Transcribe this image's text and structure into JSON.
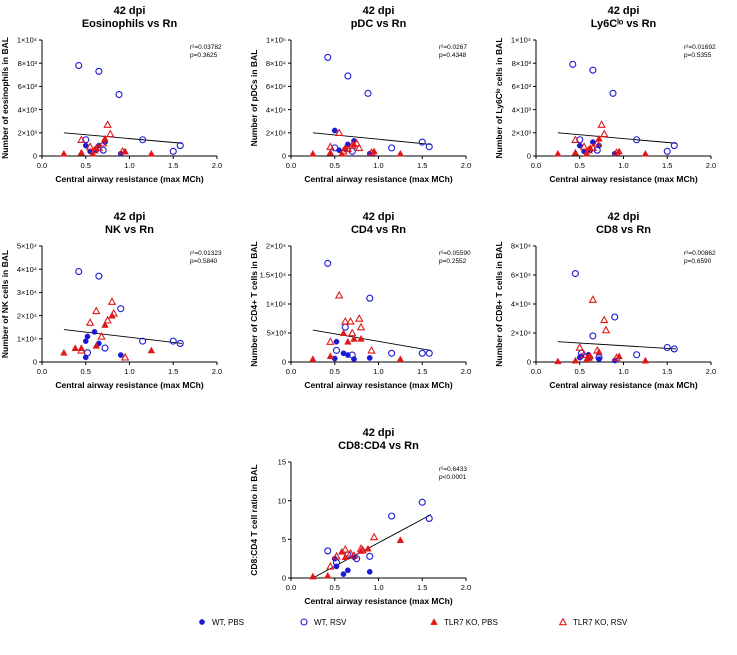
{
  "legend": {
    "items": [
      {
        "key": "wt_pbs",
        "label": "WT, PBS",
        "marker": "filled-circle",
        "color": "#1a1ad6"
      },
      {
        "key": "wt_rsv",
        "label": "WT, RSV",
        "marker": "open-circle",
        "color": "#1a1ad6"
      },
      {
        "key": "tlr7_pbs",
        "label": "TLR7 KO, PBS",
        "marker": "filled-triangle",
        "color": "#e01818"
      },
      {
        "key": "tlr7_rsv",
        "label": "TLR7 KO, RSV",
        "marker": "open-triangle",
        "color": "#e01818"
      }
    ]
  },
  "chart_data": [
    {
      "id": "eos",
      "type": "scatter",
      "title_line1": "42 dpi",
      "title_line2": "Eosinophils vs Rn",
      "ylabel": "Number of eosinophils in BAL",
      "xlabel": "Central airway resistance (max MCh)",
      "xlim": [
        0,
        2.0
      ],
      "xticks": [
        "0.0",
        "0.5",
        "1.0",
        "1.5",
        "2.0"
      ],
      "ylim": [
        0,
        10000
      ],
      "yticks": [
        "0",
        "2×10³",
        "4×10³",
        "6×10³",
        "8×10³",
        "1×10⁴"
      ],
      "stats": {
        "r2": "r²=0.03782",
        "p": "p=0.3625"
      },
      "fit": {
        "x": [
          0.25,
          1.6
        ],
        "y": [
          2000,
          1100
        ]
      },
      "series": [
        {
          "group": "wt_pbs",
          "x": [
            0.5,
            0.55,
            0.62,
            0.65,
            0.72,
            0.9
          ],
          "y": [
            900,
            400,
            500,
            900,
            1200,
            200
          ]
        },
        {
          "group": "wt_rsv",
          "x": [
            0.42,
            0.5,
            0.65,
            0.7,
            0.88,
            1.15,
            1.5,
            1.58
          ],
          "y": [
            7800,
            1400,
            7300,
            500,
            5300,
            1400,
            400,
            900
          ]
        },
        {
          "group": "tlr7_pbs",
          "x": [
            0.25,
            0.45,
            0.58,
            0.62,
            0.72,
            0.95,
            1.25
          ],
          "y": [
            200,
            300,
            200,
            700,
            1500,
            400,
            200
          ]
        },
        {
          "group": "tlr7_rsv",
          "x": [
            0.45,
            0.55,
            0.6,
            0.65,
            0.7,
            0.75,
            0.78,
            0.92
          ],
          "y": [
            1400,
            800,
            500,
            700,
            1100,
            2700,
            1900,
            400
          ]
        }
      ]
    },
    {
      "id": "pdc",
      "type": "scatter",
      "title_line1": "42 dpi",
      "title_line2": "pDC vs Rn",
      "ylabel": "Number of pDCs in BAL",
      "xlabel": "Central airway resistance (max MCh)",
      "xlim": [
        0,
        2.0
      ],
      "xticks": [
        "0.0",
        "0.5",
        "1.0",
        "1.5",
        "2.0"
      ],
      "ylim": [
        0,
        100000
      ],
      "yticks": [
        "0",
        "2×10⁴",
        "4×10⁴",
        "6×10⁴",
        "8×10⁴",
        "1×10⁵"
      ],
      "stats": {
        "r2": "r²=0.0267",
        "p": "p=0.4348"
      },
      "fit": {
        "x": [
          0.25,
          1.6
        ],
        "y": [
          20000,
          10000
        ]
      },
      "series": [
        {
          "group": "wt_pbs",
          "x": [
            0.5,
            0.55,
            0.62,
            0.65,
            0.72,
            0.9
          ],
          "y": [
            22000,
            5000,
            6000,
            10000,
            13000,
            2000
          ]
        },
        {
          "group": "wt_rsv",
          "x": [
            0.42,
            0.5,
            0.65,
            0.7,
            0.88,
            1.15,
            1.5,
            1.58
          ],
          "y": [
            85000,
            7000,
            69000,
            4000,
            54000,
            7000,
            12000,
            8000
          ]
        },
        {
          "group": "tlr7_pbs",
          "x": [
            0.25,
            0.45,
            0.58,
            0.62,
            0.72,
            0.95,
            1.25
          ],
          "y": [
            2000,
            3000,
            2000,
            7000,
            10000,
            4000,
            2000
          ]
        },
        {
          "group": "tlr7_rsv",
          "x": [
            0.45,
            0.55,
            0.6,
            0.65,
            0.7,
            0.75,
            0.78,
            0.92
          ],
          "y": [
            8000,
            20000,
            4000,
            6000,
            9000,
            11000,
            7000,
            3000
          ]
        }
      ]
    },
    {
      "id": "ly6c",
      "type": "scatter",
      "title_line1": "42 dpi",
      "title_line2": "Ly6Cˡᵒ vs Rn",
      "ylabel": "Number of Ly6Cˡᵒ cells in BAL",
      "xlabel": "Central airway resistance (max MCh)",
      "xlim": [
        0,
        2.0
      ],
      "xticks": [
        "0.0",
        "0.5",
        "1.0",
        "1.5",
        "2.0"
      ],
      "ylim": [
        0,
        10000
      ],
      "yticks": [
        "0",
        "2×10³",
        "4×10³",
        "6×10³",
        "8×10³",
        "1×10⁴"
      ],
      "stats": {
        "r2": "r²=0.01692",
        "p": "p=0.5355"
      },
      "fit": {
        "x": [
          0.25,
          1.6
        ],
        "y": [
          2000,
          1100
        ]
      },
      "series": [
        {
          "group": "wt_pbs",
          "x": [
            0.5,
            0.55,
            0.62,
            0.65,
            0.72,
            0.9
          ],
          "y": [
            900,
            400,
            500,
            1200,
            900,
            200
          ]
        },
        {
          "group": "wt_rsv",
          "x": [
            0.42,
            0.5,
            0.65,
            0.7,
            0.88,
            1.15,
            1.5,
            1.58
          ],
          "y": [
            7900,
            1400,
            7400,
            500,
            5400,
            1400,
            400,
            900
          ]
        },
        {
          "group": "tlr7_pbs",
          "x": [
            0.25,
            0.45,
            0.58,
            0.62,
            0.72,
            0.95,
            1.25
          ],
          "y": [
            200,
            300,
            200,
            700,
            1500,
            400,
            200
          ]
        },
        {
          "group": "tlr7_rsv",
          "x": [
            0.45,
            0.55,
            0.6,
            0.65,
            0.7,
            0.75,
            0.78,
            0.92
          ],
          "y": [
            1400,
            800,
            500,
            700,
            1100,
            2700,
            1900,
            300
          ]
        }
      ]
    },
    {
      "id": "nk",
      "type": "scatter",
      "title_line1": "42 dpi",
      "title_line2": "NK vs Rn",
      "ylabel": "Number of NK cells in BAL",
      "xlabel": "Central airway resistance (max MCh)",
      "xlim": [
        0,
        2.0
      ],
      "xticks": [
        "0.0",
        "0.5",
        "1.0",
        "1.5",
        "2.0"
      ],
      "ylim": [
        0,
        50000
      ],
      "yticks": [
        "0",
        "1×10⁴",
        "2×10⁴",
        "3×10⁴",
        "4×10⁴",
        "5×10⁴"
      ],
      "stats": {
        "r2": "r²=0.01323",
        "p": "p=0.5840"
      },
      "fit": {
        "x": [
          0.25,
          1.6
        ],
        "y": [
          14000,
          8000
        ]
      },
      "series": [
        {
          "group": "wt_pbs",
          "x": [
            0.5,
            0.5,
            0.52,
            0.6,
            0.65,
            0.9
          ],
          "y": [
            2000,
            9000,
            11000,
            13000,
            8000,
            3000
          ]
        },
        {
          "group": "wt_rsv",
          "x": [
            0.42,
            0.52,
            0.65,
            0.72,
            0.9,
            1.15,
            1.5,
            1.58
          ],
          "y": [
            39000,
            4000,
            37000,
            6000,
            23000,
            9000,
            9000,
            8000
          ]
        },
        {
          "group": "tlr7_pbs",
          "x": [
            0.25,
            0.38,
            0.45,
            0.62,
            0.72,
            0.8,
            1.25
          ],
          "y": [
            4000,
            6000,
            6000,
            7000,
            16000,
            20000,
            5000
          ]
        },
        {
          "group": "tlr7_rsv",
          "x": [
            0.45,
            0.55,
            0.62,
            0.68,
            0.75,
            0.8,
            0.82,
            0.95
          ],
          "y": [
            5000,
            17000,
            22000,
            11000,
            18000,
            26000,
            21000,
            2000
          ]
        }
      ]
    },
    {
      "id": "cd4",
      "type": "scatter",
      "title_line1": "42 dpi",
      "title_line2": "CD4 vs Rn",
      "ylabel": "Number of CD4+ T cells in BAL",
      "xlabel": "Central airway resistance (max MCh)",
      "xlim": [
        0,
        2.0
      ],
      "xticks": [
        "0.0",
        "0.5",
        "1.0",
        "1.5",
        "2.0"
      ],
      "ylim": [
        0,
        20000
      ],
      "yticks": [
        "0",
        "5×10³",
        "1×10⁴",
        "1.5×10⁴",
        "2×10⁴"
      ],
      "stats": {
        "r2": "r²=0.05590",
        "p": "p=0.2552"
      },
      "fit": {
        "x": [
          0.25,
          1.6
        ],
        "y": [
          5500,
          2000
        ]
      },
      "series": [
        {
          "group": "wt_pbs",
          "x": [
            0.5,
            0.52,
            0.6,
            0.65,
            0.72,
            0.9
          ],
          "y": [
            600,
            3500,
            1500,
            1200,
            500,
            700
          ]
        },
        {
          "group": "wt_rsv",
          "x": [
            0.42,
            0.52,
            0.62,
            0.7,
            0.9,
            1.15,
            1.5,
            1.58
          ],
          "y": [
            17000,
            2000,
            6000,
            1200,
            11000,
            1500,
            1500,
            1500
          ]
        },
        {
          "group": "tlr7_pbs",
          "x": [
            0.25,
            0.45,
            0.6,
            0.65,
            0.72,
            0.8,
            1.25
          ],
          "y": [
            500,
            1000,
            5000,
            3500,
            4000,
            4000,
            500
          ]
        },
        {
          "group": "tlr7_rsv",
          "x": [
            0.45,
            0.55,
            0.62,
            0.68,
            0.7,
            0.78,
            0.8,
            0.92
          ],
          "y": [
            3500,
            11500,
            7000,
            7000,
            5000,
            7500,
            6000,
            2000
          ]
        }
      ]
    },
    {
      "id": "cd8",
      "type": "scatter",
      "title_line1": "42 dpi",
      "title_line2": "CD8 vs Rn",
      "ylabel": "Number of CD8+ T cells in BAL",
      "xlabel": "Central airway resistance (max MCh)",
      "xlim": [
        0,
        2.0
      ],
      "xticks": [
        "0.0",
        "0.5",
        "1.0",
        "1.5",
        "2.0"
      ],
      "ylim": [
        0,
        80000
      ],
      "yticks": [
        "0",
        "2×10⁴",
        "4×10⁴",
        "6×10⁴",
        "8×10⁴"
      ],
      "stats": {
        "r2": "r²=0.00862",
        "p": "p=0.6590"
      },
      "fit": {
        "x": [
          0.25,
          1.6
        ],
        "y": [
          14000,
          9000
        ]
      },
      "series": [
        {
          "group": "wt_pbs",
          "x": [
            0.5,
            0.52,
            0.6,
            0.62,
            0.72,
            0.9
          ],
          "y": [
            3000,
            4000,
            5000,
            3000,
            2000,
            1000
          ]
        },
        {
          "group": "wt_rsv",
          "x": [
            0.45,
            0.52,
            0.65,
            0.72,
            0.9,
            1.15,
            1.5,
            1.58
          ],
          "y": [
            61000,
            6000,
            18000,
            3000,
            31000,
            5000,
            10000,
            9000
          ]
        },
        {
          "group": "tlr7_pbs",
          "x": [
            0.25,
            0.45,
            0.58,
            0.62,
            0.72,
            0.95,
            1.25
          ],
          "y": [
            500,
            1000,
            2000,
            4000,
            7000,
            4000,
            1000
          ]
        },
        {
          "group": "tlr7_rsv",
          "x": [
            0.5,
            0.55,
            0.6,
            0.65,
            0.7,
            0.78,
            0.8,
            0.92
          ],
          "y": [
            10000,
            5000,
            3000,
            43000,
            8000,
            29000,
            22000,
            3000
          ]
        }
      ]
    },
    {
      "id": "ratio",
      "type": "scatter",
      "title_line1": "42 dpi",
      "title_line2": "CD8:CD4 vs Rn",
      "ylabel": "CD8:CD4 T cell ratio in BAL",
      "xlabel": "Central airway resistance (max MCh)",
      "xlim": [
        0,
        2.0
      ],
      "xticks": [
        "0.0",
        "0.5",
        "1.0",
        "1.5",
        "2.0"
      ],
      "ylim": [
        0,
        15
      ],
      "yticks": [
        "0",
        "5",
        "10",
        "15"
      ],
      "stats": {
        "r2": "r²=0.6433",
        "p": "p<0.0001"
      },
      "fit": {
        "x": [
          0.25,
          1.6
        ],
        "y": [
          0.0,
          8.2
        ]
      },
      "series": [
        {
          "group": "wt_pbs",
          "x": [
            0.5,
            0.52,
            0.6,
            0.65,
            0.72,
            0.9
          ],
          "y": [
            2.5,
            1.5,
            0.5,
            1.0,
            2.7,
            0.8
          ]
        },
        {
          "group": "wt_rsv",
          "x": [
            0.42,
            0.52,
            0.65,
            0.75,
            0.9,
            1.15,
            1.5,
            1.58
          ],
          "y": [
            3.5,
            2.0,
            3.0,
            2.5,
            2.8,
            8.0,
            9.8,
            7.7
          ]
        },
        {
          "group": "tlr7_pbs",
          "x": [
            0.25,
            0.42,
            0.58,
            0.62,
            0.8,
            0.88,
            1.25
          ],
          "y": [
            0.2,
            0.3,
            3.4,
            2.7,
            3.5,
            3.8,
            4.9
          ]
        },
        {
          "group": "tlr7_rsv",
          "x": [
            0.45,
            0.52,
            0.62,
            0.68,
            0.72,
            0.8,
            0.82,
            0.95
          ],
          "y": [
            1.5,
            2.8,
            3.7,
            3.2,
            2.9,
            3.8,
            3.6,
            5.3
          ]
        }
      ]
    }
  ]
}
